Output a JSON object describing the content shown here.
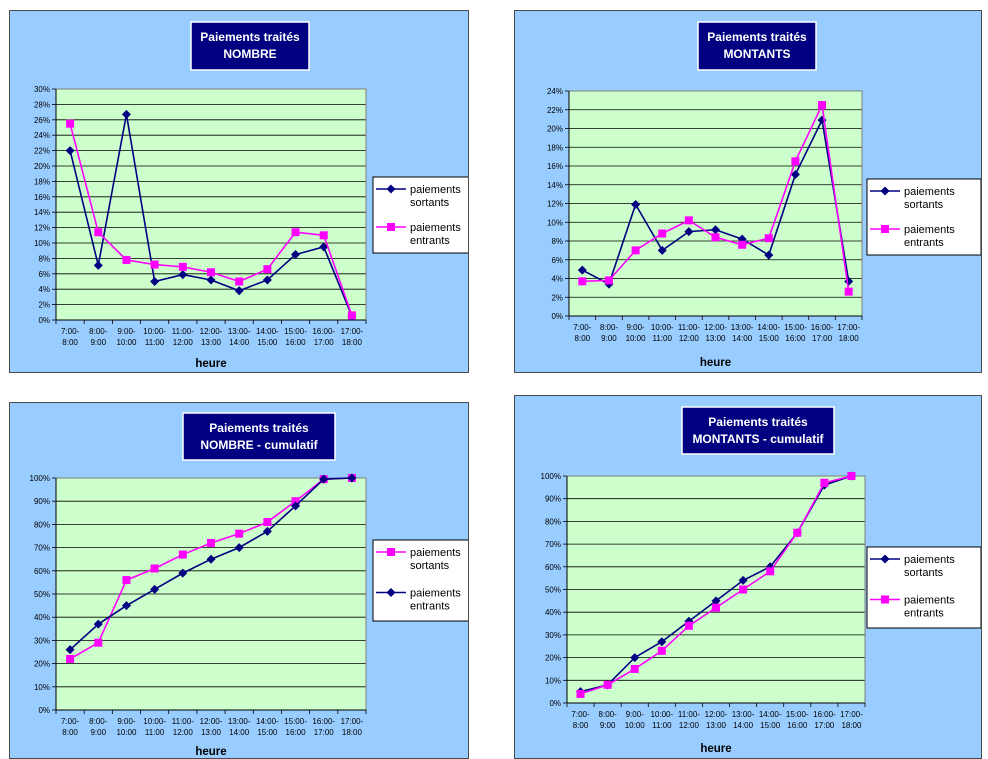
{
  "chart_data": [
    {
      "type": "line",
      "title": "Paiements traités",
      "subtitle": "NOMBRE",
      "xlabel": "heure",
      "ylabel": "",
      "ylim": [
        0,
        30
      ],
      "ystep": 2,
      "legend_position": "right",
      "grid": true,
      "categories": [
        [
          "7:00-",
          "8:00"
        ],
        [
          "8:00-",
          "9:00"
        ],
        [
          "9:00-",
          "10:00"
        ],
        [
          "10:00-",
          "11:00"
        ],
        [
          "11:00-",
          "12:00"
        ],
        [
          "12:00-",
          "13:00"
        ],
        [
          "13:00-",
          "14:00"
        ],
        [
          "14:00-",
          "15:00"
        ],
        [
          "15:00-",
          "16:00"
        ],
        [
          "16:00-",
          "17:00"
        ],
        [
          "17:00-",
          "18:00"
        ]
      ],
      "series": [
        {
          "name": [
            "paiements",
            "sortants"
          ],
          "color": "#000080",
          "marker": "diamond",
          "values": [
            22.0,
            7.1,
            26.7,
            5.0,
            5.9,
            5.2,
            3.8,
            5.2,
            8.5,
            9.5,
            0.5
          ]
        },
        {
          "name": [
            "paiements",
            "entrants"
          ],
          "color": "#ff00ff",
          "marker": "square",
          "values": [
            25.5,
            11.4,
            7.8,
            7.2,
            6.9,
            6.2,
            5.0,
            6.6,
            11.4,
            11.0,
            0.6
          ]
        }
      ]
    },
    {
      "type": "line",
      "title": "Paiements traités",
      "subtitle": "MONTANTS",
      "xlabel": "heure",
      "ylabel": "",
      "ylim": [
        0,
        24
      ],
      "ystep": 2,
      "legend_position": "right",
      "grid": true,
      "categories": [
        [
          "7:00-",
          "8:00"
        ],
        [
          "8:00-",
          "9:00"
        ],
        [
          "9:00-",
          "10:00"
        ],
        [
          "10:00-",
          "11:00"
        ],
        [
          "11:00-",
          "12:00"
        ],
        [
          "12:00-",
          "13:00"
        ],
        [
          "13:00-",
          "14:00"
        ],
        [
          "14:00-",
          "15:00"
        ],
        [
          "15:00-",
          "16:00"
        ],
        [
          "16:00-",
          "17:00"
        ],
        [
          "17:00-",
          "18:00"
        ]
      ],
      "series": [
        {
          "name": [
            "paiements",
            "sortants"
          ],
          "color": "#000080",
          "marker": "diamond",
          "values": [
            4.9,
            3.4,
            11.9,
            7.0,
            9.0,
            9.2,
            8.2,
            6.5,
            15.1,
            20.9,
            3.7
          ]
        },
        {
          "name": [
            "paiements",
            "entrants"
          ],
          "color": "#ff00ff",
          "marker": "square",
          "values": [
            3.7,
            3.8,
            7.0,
            8.8,
            10.2,
            8.4,
            7.6,
            8.3,
            16.5,
            22.5,
            2.6
          ]
        }
      ]
    },
    {
      "type": "line",
      "title": "Paiements traités",
      "subtitle": "NOMBRE - cumulatif",
      "xlabel": "heure",
      "ylabel": "",
      "ylim": [
        0,
        100
      ],
      "ystep": 10,
      "legend_position": "right",
      "grid": true,
      "categories": [
        [
          "7:00-",
          "8:00"
        ],
        [
          "8:00-",
          "9:00"
        ],
        [
          "9:00-",
          "10:00"
        ],
        [
          "10:00-",
          "11:00"
        ],
        [
          "11:00-",
          "12:00"
        ],
        [
          "12:00-",
          "13:00"
        ],
        [
          "13:00-",
          "14:00"
        ],
        [
          "14:00-",
          "15:00"
        ],
        [
          "15:00-",
          "16:00"
        ],
        [
          "16:00-",
          "17:00"
        ],
        [
          "17:00-",
          "18:00"
        ]
      ],
      "series": [
        {
          "name": [
            "paiements",
            "sortants"
          ],
          "color": "#ff00ff",
          "marker": "square",
          "values": [
            22,
            29,
            56,
            61,
            67,
            72,
            76,
            81,
            90,
            99.5,
            100
          ]
        },
        {
          "name": [
            "paiements",
            "entrants"
          ],
          "color": "#000080",
          "marker": "diamond",
          "values": [
            26,
            37,
            45,
            52,
            59,
            65,
            70,
            77,
            88,
            99.5,
            100
          ]
        }
      ]
    },
    {
      "type": "line",
      "title": "Paiements traités",
      "subtitle": "MONTANTS - cumulatif",
      "xlabel": "heure",
      "ylabel": "",
      "ylim": [
        0,
        100
      ],
      "ystep": 10,
      "legend_position": "right",
      "grid": true,
      "categories": [
        [
          "7:00-",
          "8:00"
        ],
        [
          "8:00-",
          "9:00"
        ],
        [
          "9:00-",
          "10:00"
        ],
        [
          "10:00-",
          "11:00"
        ],
        [
          "11:00-",
          "12:00"
        ],
        [
          "12:00-",
          "13:00"
        ],
        [
          "13:00-",
          "14:00"
        ],
        [
          "14:00-",
          "15:00"
        ],
        [
          "15:00-",
          "16:00"
        ],
        [
          "16:00-",
          "17:00"
        ],
        [
          "17:00-",
          "18:00"
        ]
      ],
      "series": [
        {
          "name": [
            "paiements",
            "sortants"
          ],
          "color": "#000080",
          "marker": "diamond",
          "values": [
            5,
            8,
            20,
            27,
            36,
            45,
            54,
            60,
            75,
            96,
            100
          ]
        },
        {
          "name": [
            "paiements",
            "entrants"
          ],
          "color": "#ff00ff",
          "marker": "square",
          "values": [
            4,
            8,
            15,
            23,
            34,
            42,
            50,
            58,
            75,
            97,
            100
          ]
        }
      ]
    }
  ]
}
